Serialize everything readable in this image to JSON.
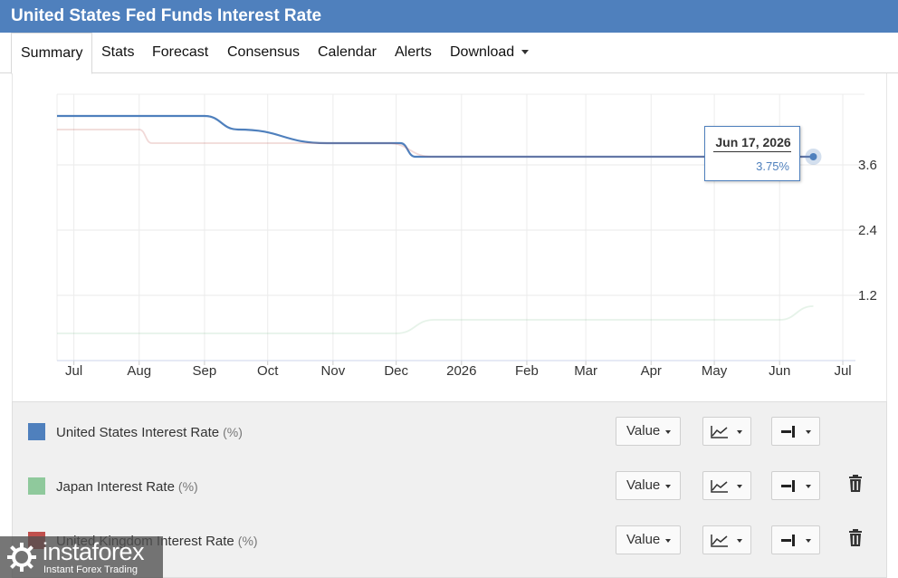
{
  "title": "United States Fed Funds Interest Rate",
  "tabs": [
    {
      "label": "Summary"
    },
    {
      "label": "Stats"
    },
    {
      "label": "Forecast"
    },
    {
      "label": "Consensus"
    },
    {
      "label": "Calendar"
    },
    {
      "label": "Alerts"
    },
    {
      "label": "Download"
    }
  ],
  "tooltip": {
    "date": "Jun 17, 2026",
    "value": "3.75%"
  },
  "legend": [
    {
      "name": "United States Interest Rate",
      "unit": "(%)",
      "color": "#4f80bd",
      "value_btn": "Value"
    },
    {
      "name": "Japan Interest Rate",
      "unit": "(%)",
      "color": "#8fc99c",
      "value_btn": "Value"
    },
    {
      "name": "United Kingdom Interest Rate",
      "unit": "(%)",
      "color": "#c0504d",
      "value_btn": "Value"
    }
  ],
  "watermark": {
    "brand": "instaforex",
    "tagline": "Instant Forex Trading"
  },
  "icons": {
    "line_chart": "line-chart-icon",
    "axis_position": "axis-position-icon",
    "delete": "trash-icon"
  },
  "chart_data": {
    "type": "line",
    "title": "",
    "xlabel": "",
    "ylabel": "",
    "x_ticks": [
      "Jul",
      "Aug",
      "Sep",
      "Oct",
      "Nov",
      "Dec",
      "2026",
      "Feb",
      "Mar",
      "Apr",
      "May",
      "Jun",
      "Jul"
    ],
    "y_ticks": [
      1.2,
      2.4,
      3.6
    ],
    "ylim": [
      0,
      4.9
    ],
    "xlim": [
      "2025-06-23",
      "2026-07-07"
    ],
    "y_axis_side": "right",
    "grid": true,
    "series": [
      {
        "name": "United States Interest Rate",
        "color": "#4f80bd",
        "points": [
          [
            "2025-06-23",
            4.5
          ],
          [
            "2025-09-01",
            4.5
          ],
          [
            "2025-09-17",
            4.25
          ],
          [
            "2025-10-29",
            4.0
          ],
          [
            "2025-12-03",
            4.0
          ],
          [
            "2025-12-10",
            3.75
          ],
          [
            "2026-06-17",
            3.75
          ]
        ]
      },
      {
        "name": "Japan Interest Rate",
        "color": "#8fc99c",
        "points": [
          [
            "2025-06-23",
            0.5
          ],
          [
            "2025-12-01",
            0.5
          ],
          [
            "2025-12-19",
            0.75
          ],
          [
            "2026-06-01",
            0.75
          ],
          [
            "2026-06-17",
            1.0
          ]
        ]
      },
      {
        "name": "United Kingdom Interest Rate",
        "color": "#c0504d",
        "points": [
          [
            "2025-06-23",
            4.25
          ],
          [
            "2025-08-01",
            4.25
          ],
          [
            "2025-08-07",
            4.0
          ],
          [
            "2025-11-27",
            4.0
          ],
          [
            "2025-12-18",
            3.75
          ],
          [
            "2026-06-17",
            3.75
          ]
        ]
      }
    ],
    "highlight": {
      "series": "United States Interest Rate",
      "x": "2026-06-17",
      "y": 3.75
    }
  }
}
